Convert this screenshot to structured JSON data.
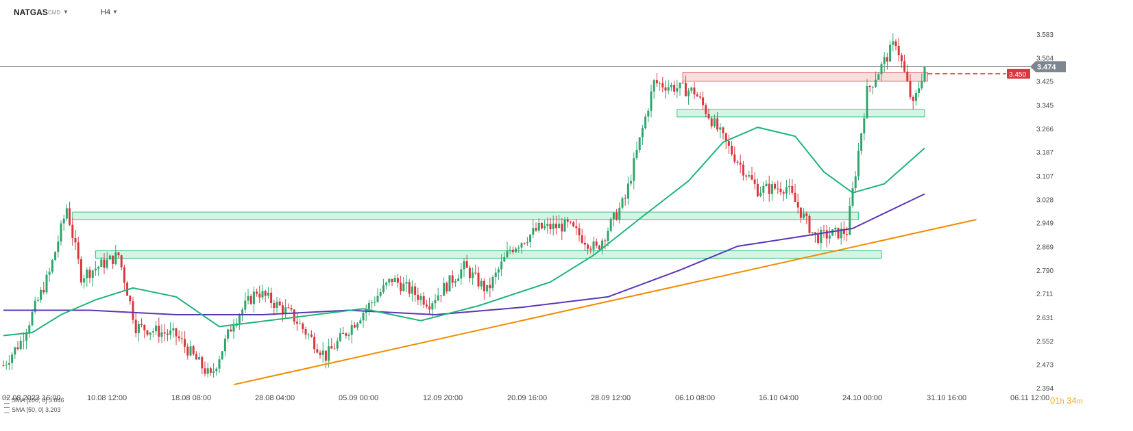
{
  "header": {
    "symbol": "NATGAS",
    "market": "CMD",
    "timeframe": "H4"
  },
  "legend": [
    {
      "label": "SMA  [200,  0]  3.046",
      "color": "#5b35b5"
    },
    {
      "label": "SMA  [50,  0]  3.203",
      "color": "#1fb37a"
    }
  ],
  "timer": {
    "hours": "01",
    "h_unit": "h",
    "minutes": "34",
    "m_unit": "m"
  },
  "colors": {
    "up": "#2ea66b",
    "down": "#d9363e",
    "sma200": "#5b35b5",
    "sma50": "#1fb37a",
    "trend": "#f28b00",
    "zone_fill": "#c8f0dc",
    "zone_stroke": "#3fbf84",
    "resistance_fill": "#f9d5d5",
    "resistance_stroke": "#e05a5a",
    "current_price_bg": "#7d8590",
    "alert_bg": "#d9363e"
  },
  "chart_data": {
    "type": "candlestick",
    "x_ticks": [
      "02.08.2023  16:00",
      "10.08  12:00",
      "18.08  08:00",
      "28.08  04:00",
      "05.09  00:00",
      "12.09  20:00",
      "20.09  16:00",
      "28.09  12:00",
      "06.10  08:00",
      "16.10  04:00",
      "24.10  00:00",
      "31.10  16:00",
      "06.11  12:00"
    ],
    "y_ticks": [
      2.394,
      2.473,
      2.552,
      2.631,
      2.711,
      2.79,
      2.869,
      2.949,
      3.028,
      3.107,
      3.187,
      3.266,
      3.345,
      3.425,
      3.504,
      3.583
    ],
    "ylim": [
      2.394,
      3.62
    ],
    "current_price": "3.474",
    "alert_level": "3.450",
    "price_path": [
      {
        "t": 0,
        "p": 2.47
      },
      {
        "t": 6,
        "p": 2.55
      },
      {
        "t": 16,
        "p": 2.78
      },
      {
        "t": 22,
        "p": 3.0
      },
      {
        "t": 27,
        "p": 2.77
      },
      {
        "t": 40,
        "p": 2.84
      },
      {
        "t": 46,
        "p": 2.6
      },
      {
        "t": 60,
        "p": 2.57
      },
      {
        "t": 72,
        "p": 2.43
      },
      {
        "t": 80,
        "p": 2.62
      },
      {
        "t": 88,
        "p": 2.72
      },
      {
        "t": 100,
        "p": 2.64
      },
      {
        "t": 112,
        "p": 2.5
      },
      {
        "t": 125,
        "p": 2.65
      },
      {
        "t": 135,
        "p": 2.76
      },
      {
        "t": 148,
        "p": 2.68
      },
      {
        "t": 160,
        "p": 2.8
      },
      {
        "t": 168,
        "p": 2.72
      },
      {
        "t": 176,
        "p": 2.86
      },
      {
        "t": 186,
        "p": 2.93
      },
      {
        "t": 196,
        "p": 2.94
      },
      {
        "t": 206,
        "p": 2.86
      },
      {
        "t": 216,
        "p": 3.03
      },
      {
        "t": 226,
        "p": 3.42
      },
      {
        "t": 240,
        "p": 3.39
      },
      {
        "t": 252,
        "p": 3.2
      },
      {
        "t": 262,
        "p": 3.06
      },
      {
        "t": 272,
        "p": 3.07
      },
      {
        "t": 282,
        "p": 2.9
      },
      {
        "t": 293,
        "p": 2.92
      },
      {
        "t": 300,
        "p": 3.39
      },
      {
        "t": 310,
        "p": 3.56
      },
      {
        "t": 316,
        "p": 3.34
      },
      {
        "t": 320,
        "p": 3.474
      }
    ],
    "sma50": [
      {
        "t": 0,
        "p": 2.57
      },
      {
        "t": 10,
        "p": 2.58
      },
      {
        "t": 20,
        "p": 2.64
      },
      {
        "t": 32,
        "p": 2.69
      },
      {
        "t": 45,
        "p": 2.73
      },
      {
        "t": 60,
        "p": 2.7
      },
      {
        "t": 75,
        "p": 2.6
      },
      {
        "t": 100,
        "p": 2.63
      },
      {
        "t": 125,
        "p": 2.66
      },
      {
        "t": 145,
        "p": 2.62
      },
      {
        "t": 165,
        "p": 2.67
      },
      {
        "t": 190,
        "p": 2.75
      },
      {
        "t": 205,
        "p": 2.84
      },
      {
        "t": 222,
        "p": 2.97
      },
      {
        "t": 238,
        "p": 3.09
      },
      {
        "t": 250,
        "p": 3.22
      },
      {
        "t": 262,
        "p": 3.27
      },
      {
        "t": 275,
        "p": 3.24
      },
      {
        "t": 285,
        "p": 3.12
      },
      {
        "t": 295,
        "p": 3.05
      },
      {
        "t": 306,
        "p": 3.08
      },
      {
        "t": 320,
        "p": 3.2
      }
    ],
    "sma200": [
      {
        "t": 0,
        "p": 2.655
      },
      {
        "t": 30,
        "p": 2.655
      },
      {
        "t": 60,
        "p": 2.64
      },
      {
        "t": 90,
        "p": 2.64
      },
      {
        "t": 120,
        "p": 2.655
      },
      {
        "t": 150,
        "p": 2.64
      },
      {
        "t": 180,
        "p": 2.665
      },
      {
        "t": 210,
        "p": 2.7
      },
      {
        "t": 235,
        "p": 2.79
      },
      {
        "t": 255,
        "p": 2.87
      },
      {
        "t": 275,
        "p": 2.9
      },
      {
        "t": 295,
        "p": 2.93
      },
      {
        "t": 320,
        "p": 3.046
      }
    ],
    "trendline": [
      {
        "t": 80,
        "p": 2.405
      },
      {
        "t": 338,
        "p": 2.96
      }
    ],
    "support_zones": [
      {
        "t1": 24,
        "t2": 297,
        "p1": 2.96,
        "p2": 2.985
      },
      {
        "t1": 32,
        "t2": 305,
        "p1": 2.83,
        "p2": 2.855
      },
      {
        "t1": 234,
        "t2": 320,
        "p1": 3.305,
        "p2": 3.33
      }
    ],
    "resistance_zone": {
      "t1": 236,
      "t2": 321,
      "p1": 3.425,
      "p2": 3.455
    }
  }
}
